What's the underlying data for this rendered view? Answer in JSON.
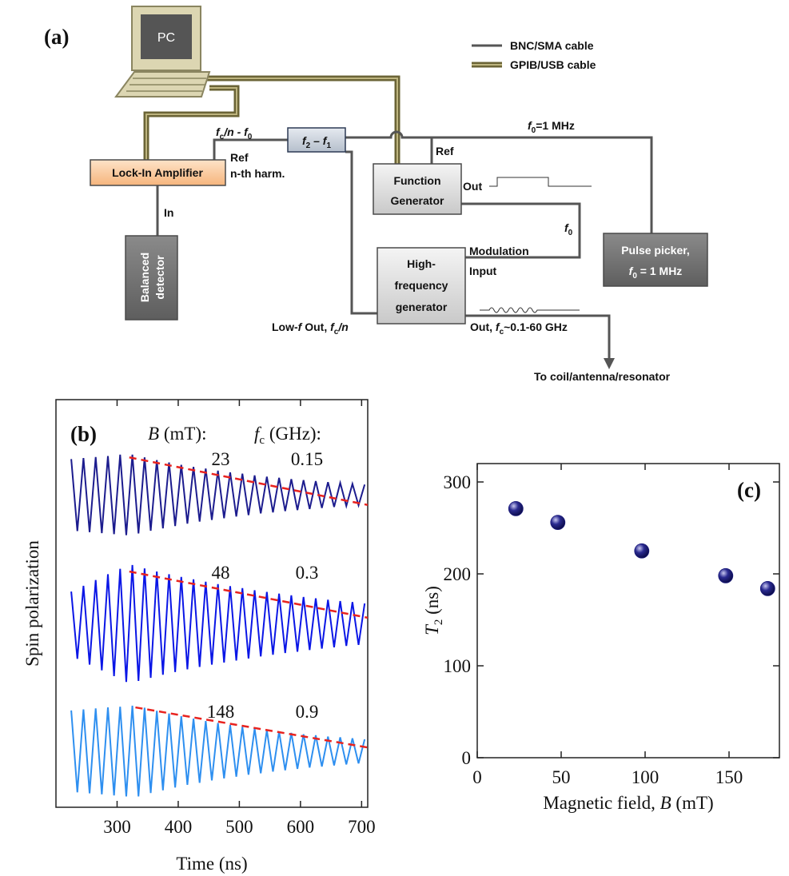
{
  "diagram": {
    "panel_label": "(a)",
    "legend": [
      "BNC/SMA cable",
      "GPIB/USB cable"
    ],
    "pc": "PC",
    "lock_in": "Lock-In Amplifier",
    "detector": [
      "Balanced",
      "detector"
    ],
    "mixer": [
      "f",
      "2",
      " – f",
      "1"
    ],
    "function_generator": [
      "Function",
      "Generator"
    ],
    "hf_generator": [
      "High-",
      "frequency",
      "generator"
    ],
    "pulse_picker": [
      "Pulse picker,",
      "f",
      "0",
      " = 1 MHz"
    ],
    "labels": {
      "ref_freq": [
        "f",
        "c",
        "/n - f",
        "0"
      ],
      "ref": "Ref",
      "harmonic": "n-th harm.",
      "in": "In",
      "fg_ref": "Ref",
      "out": "Out",
      "f0_line": [
        "f",
        "0",
        "=1 MHz"
      ],
      "f0_mod": [
        "f",
        "0"
      ],
      "modulation": [
        "Modulation",
        "Input"
      ],
      "low_out": [
        "Low-",
        "f",
        " Out, ",
        "f",
        "c",
        "/n"
      ],
      "hf_out": [
        "Out, ",
        "f",
        "c",
        "~0.1-60 GHz"
      ],
      "destination": "To coil/antenna/resonator"
    }
  },
  "chart_data": [
    {
      "type": "line",
      "panel_label": "(b)",
      "xlabel": "Time (ns)",
      "ylabel": "Spin polarization",
      "column_headers": [
        {
          "symbol": "B",
          "unit": " (mT):"
        },
        {
          "symbol": "f",
          "sub": "c",
          "unit": " (GHz):"
        }
      ],
      "xlim": [
        200,
        710
      ],
      "xticks": [
        300,
        400,
        500,
        600,
        700
      ],
      "ylim": [
        0,
        12
      ],
      "x": [
        225,
        235,
        245,
        255,
        265,
        275,
        285,
        295,
        305,
        315,
        325,
        335,
        345,
        355,
        365,
        375,
        385,
        395,
        405,
        415,
        425,
        435,
        445,
        455,
        465,
        475,
        485,
        495,
        505,
        515,
        525,
        535,
        545,
        555,
        565,
        575,
        585,
        595,
        605,
        615,
        625,
        635,
        645,
        655,
        665,
        675,
        685,
        695,
        705
      ],
      "series": [
        {
          "field": 23,
          "frequency": 0.15,
          "color": "#1c1c8e",
          "values": [
            10.25,
            8.13,
            10.28,
            8.1,
            10.31,
            8.07,
            10.34,
            8.04,
            10.38,
            8.01,
            10.38,
            8.06,
            10.3,
            8.14,
            10.22,
            8.21,
            10.15,
            8.28,
            10.08,
            8.35,
            10.02,
            8.41,
            9.97,
            8.46,
            9.91,
            8.51,
            9.86,
            8.56,
            9.82,
            8.6,
            9.77,
            8.65,
            9.73,
            8.68,
            9.7,
            8.72,
            9.66,
            8.75,
            9.63,
            8.78,
            9.6,
            8.81,
            9.57,
            8.84,
            9.55,
            8.87,
            9.52,
            8.89,
            9.5
          ]
        },
        {
          "field": 48,
          "frequency": 0.3,
          "color": "#0a16e6",
          "values": [
            6.35,
            4.37,
            6.52,
            4.2,
            6.69,
            4.03,
            6.86,
            3.86,
            7.02,
            3.69,
            7.13,
            3.72,
            7.03,
            3.81,
            6.94,
            3.9,
            6.86,
            3.98,
            6.78,
            4.06,
            6.71,
            4.13,
            6.64,
            4.2,
            6.57,
            4.26,
            6.51,
            4.32,
            6.45,
            4.38,
            6.39,
            4.44,
            6.34,
            4.49,
            6.29,
            4.54,
            6.24,
            4.58,
            6.19,
            4.63,
            6.15,
            4.67,
            6.11,
            4.71,
            6.07,
            4.75,
            6.04,
            4.78,
            6.0
          ]
        },
        {
          "field": 148,
          "frequency": 0.9,
          "color": "#2e8ff0",
          "values": [
            2.85,
            0.44,
            2.88,
            0.41,
            2.91,
            0.38,
            2.94,
            0.35,
            2.96,
            0.32,
            2.99,
            0.32,
            2.93,
            0.42,
            2.84,
            0.5,
            2.76,
            0.58,
            2.68,
            0.66,
            2.61,
            0.72,
            2.54,
            0.79,
            2.48,
            0.85,
            2.42,
            0.9,
            2.37,
            0.96,
            2.32,
            1.0,
            2.27,
            1.05,
            2.23,
            1.09,
            2.19,
            1.13,
            2.15,
            1.17,
            2.12,
            1.2,
            2.08,
            1.23,
            2.06,
            1.26,
            2.03,
            1.29,
            2.0
          ]
        }
      ],
      "fits": [
        {
          "color": "#e8231f",
          "x": [
            320,
            710
          ],
          "values": [
            10.3,
            8.9
          ]
        },
        {
          "color": "#e8231f",
          "x": [
            320,
            710
          ],
          "values": [
            6.94,
            5.58
          ]
        },
        {
          "color": "#e8231f",
          "x": [
            330,
            710
          ],
          "values": [
            2.94,
            1.76
          ]
        }
      ]
    },
    {
      "type": "scatter",
      "panel_label": "(c)",
      "xlabel": [
        "Magnetic field, ",
        "B",
        " (mT)"
      ],
      "ylabel": [
        "T",
        "2",
        " (ns)"
      ],
      "xlim": [
        0,
        180
      ],
      "xticks": [
        0,
        50,
        100,
        150
      ],
      "ylim": [
        0,
        320
      ],
      "yticks": [
        0,
        100,
        200,
        300
      ],
      "color": "#1a1a7a",
      "x": [
        23,
        48,
        98,
        148,
        173
      ],
      "values": [
        271,
        256,
        225,
        198,
        184
      ]
    }
  ]
}
